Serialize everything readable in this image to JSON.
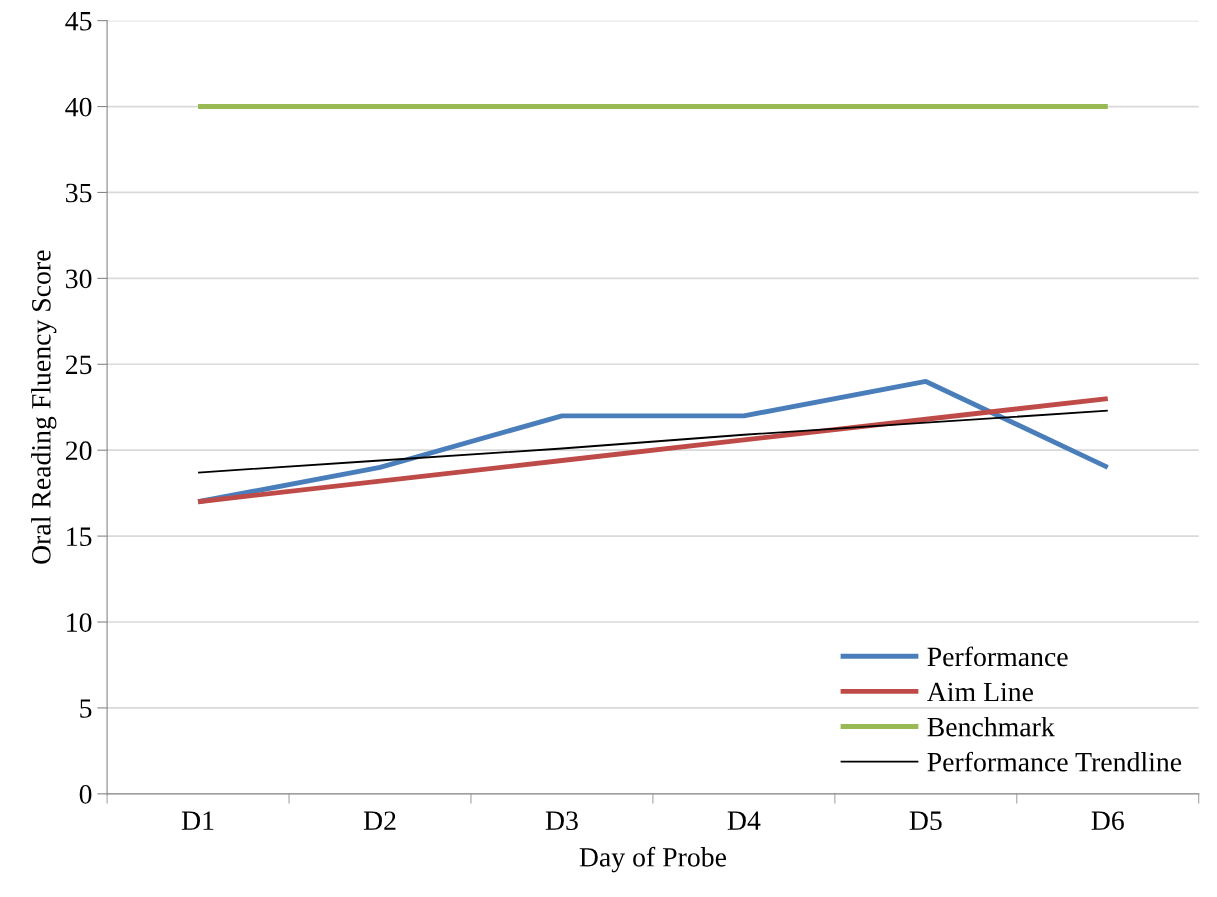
{
  "chart_data": {
    "type": "line",
    "xlabel": "Day of Probe",
    "ylabel": "Oral Reading Fluency Score",
    "categories": [
      "D1",
      "D2",
      "D3",
      "D4",
      "D5",
      "D6"
    ],
    "series": [
      {
        "name": "Performance",
        "color": "#4a7ebb",
        "values": [
          17,
          19,
          22,
          22,
          24,
          19
        ]
      },
      {
        "name": "Aim Line",
        "color": "#be4b48",
        "values": [
          17,
          18.2,
          19.4,
          20.6,
          21.8,
          23
        ]
      },
      {
        "name": "Benchmark",
        "color": "#98b954",
        "values": [
          40,
          40,
          40,
          40,
          40,
          40
        ]
      },
      {
        "name": "Performance Trendline",
        "color": "#000000",
        "values": [
          18.7,
          19.4,
          20.1,
          20.9,
          21.6,
          22.3
        ]
      }
    ],
    "ylim": [
      0,
      45
    ],
    "yticks": [
      0,
      5,
      10,
      15,
      20,
      25,
      30,
      35,
      40,
      45
    ],
    "grid": "y",
    "legend": "bottom right",
    "marker": "none",
    "line_style": "solid"
  }
}
